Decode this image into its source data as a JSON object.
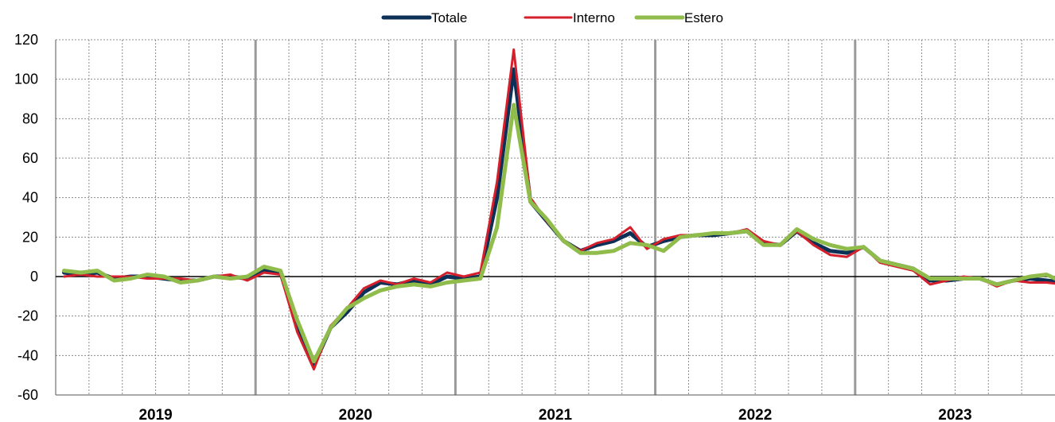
{
  "chart_data": {
    "type": "line",
    "title": "",
    "xlabel": "",
    "ylabel": "",
    "ylim": [
      -60,
      120
    ],
    "yticks": [
      -60,
      -40,
      -20,
      0,
      20,
      40,
      60,
      80,
      100,
      120
    ],
    "grid": true,
    "legend": "top-center",
    "years": [
      "2019",
      "2020",
      "2021",
      "2022",
      "2023"
    ],
    "months_per_year": 12,
    "x_start": "2019-01",
    "series": [
      {
        "name": "Totale",
        "color": "#0d3057",
        "values": [
          2,
          1,
          2,
          -1,
          0,
          0,
          -1,
          -2,
          -2,
          0,
          0,
          -1,
          3,
          2,
          -25,
          -45,
          -26,
          -18,
          -8,
          -3,
          -4,
          -2,
          -4,
          0,
          -1,
          0,
          40,
          105,
          38,
          28,
          18,
          13,
          16,
          18,
          22,
          15,
          18,
          20,
          21,
          21,
          22,
          23,
          17,
          16,
          23,
          17,
          13,
          12,
          15,
          8,
          6,
          4,
          -2,
          -2,
          -1,
          -1,
          -4,
          -2,
          -1,
          -2,
          -3,
          0
        ]
      },
      {
        "name": "Interno",
        "color": "#d4202c",
        "values": [
          0,
          1,
          0,
          0,
          0,
          -1,
          -1,
          -1,
          -2,
          0,
          1,
          -2,
          2,
          1,
          -28,
          -47,
          -25,
          -16,
          -6,
          -2,
          -4,
          -1,
          -3,
          2,
          0,
          2,
          48,
          115,
          40,
          28,
          18,
          13,
          17,
          19,
          25,
          14,
          19,
          21,
          21,
          22,
          22,
          24,
          18,
          16,
          23,
          16,
          11,
          10,
          15,
          7,
          5,
          3,
          -4,
          -2,
          0,
          -1,
          -5,
          -2,
          -3,
          -3,
          -4,
          -1
        ]
      },
      {
        "name": "Estero",
        "color": "#8fbc4a",
        "values": [
          3,
          2,
          3,
          -2,
          -1,
          1,
          0,
          -3,
          -2,
          0,
          -1,
          0,
          5,
          3,
          -22,
          -43,
          -26,
          -16,
          -11,
          -7,
          -5,
          -4,
          -5,
          -3,
          -2,
          -1,
          25,
          87,
          38,
          29,
          18,
          12,
          12,
          13,
          17,
          16,
          13,
          20,
          21,
          22,
          22,
          23,
          16,
          16,
          24,
          19,
          16,
          14,
          15,
          8,
          6,
          4,
          -1,
          -1,
          -1,
          -1,
          -4,
          -2,
          0,
          1,
          -3,
          0
        ]
      }
    ]
  }
}
